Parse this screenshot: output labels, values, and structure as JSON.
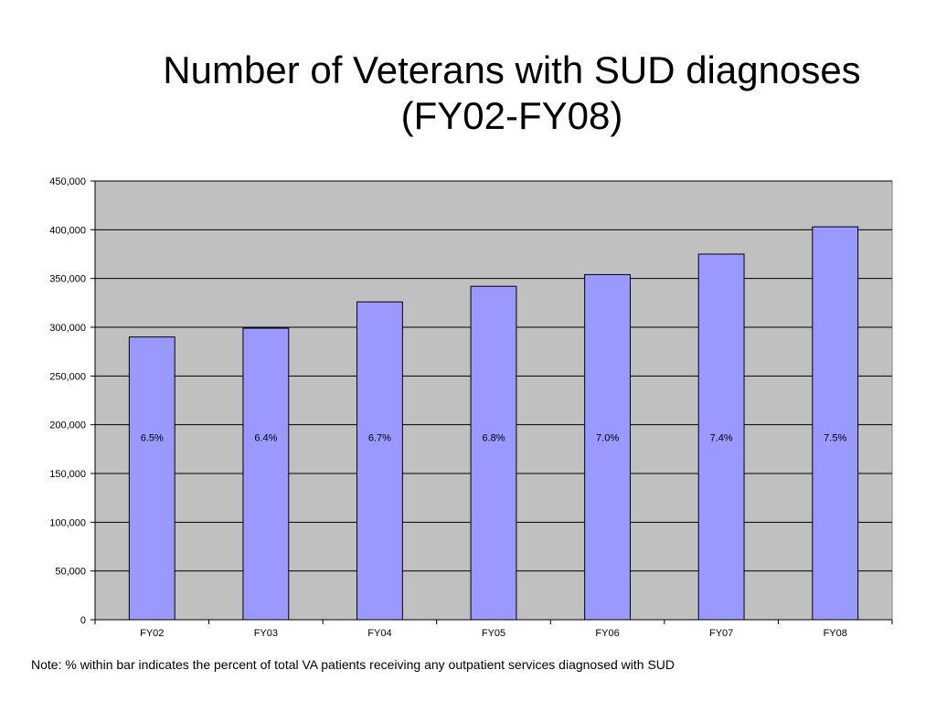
{
  "title_line1": "Number of Veterans with SUD diagnoses",
  "title_line2": "(FY02-FY08)",
  "note": "Note: % within bar indicates the percent of total VA patients receiving any outpatient services diagnosed with SUD",
  "chart_data": {
    "type": "bar",
    "categories": [
      "FY02",
      "FY03",
      "FY04",
      "FY05",
      "FY06",
      "FY07",
      "FY08"
    ],
    "values": [
      290000,
      299000,
      326000,
      342000,
      354000,
      375000,
      403000
    ],
    "data_labels": [
      "6.5%",
      "6.4%",
      "6.7%",
      "6.8%",
      "7.0%",
      "7.4%",
      "7.5%"
    ],
    "ylim": [
      0,
      450000
    ],
    "yticks": [
      "0",
      "50,000",
      "100,000",
      "150,000",
      "200,000",
      "250,000",
      "300,000",
      "350,000",
      "400,000",
      "450,000"
    ],
    "grid": true,
    "legend": "none",
    "colors": {
      "bar": "#9999ff",
      "plot_bg": "#c0c0c0",
      "gridline": "#000000"
    }
  }
}
